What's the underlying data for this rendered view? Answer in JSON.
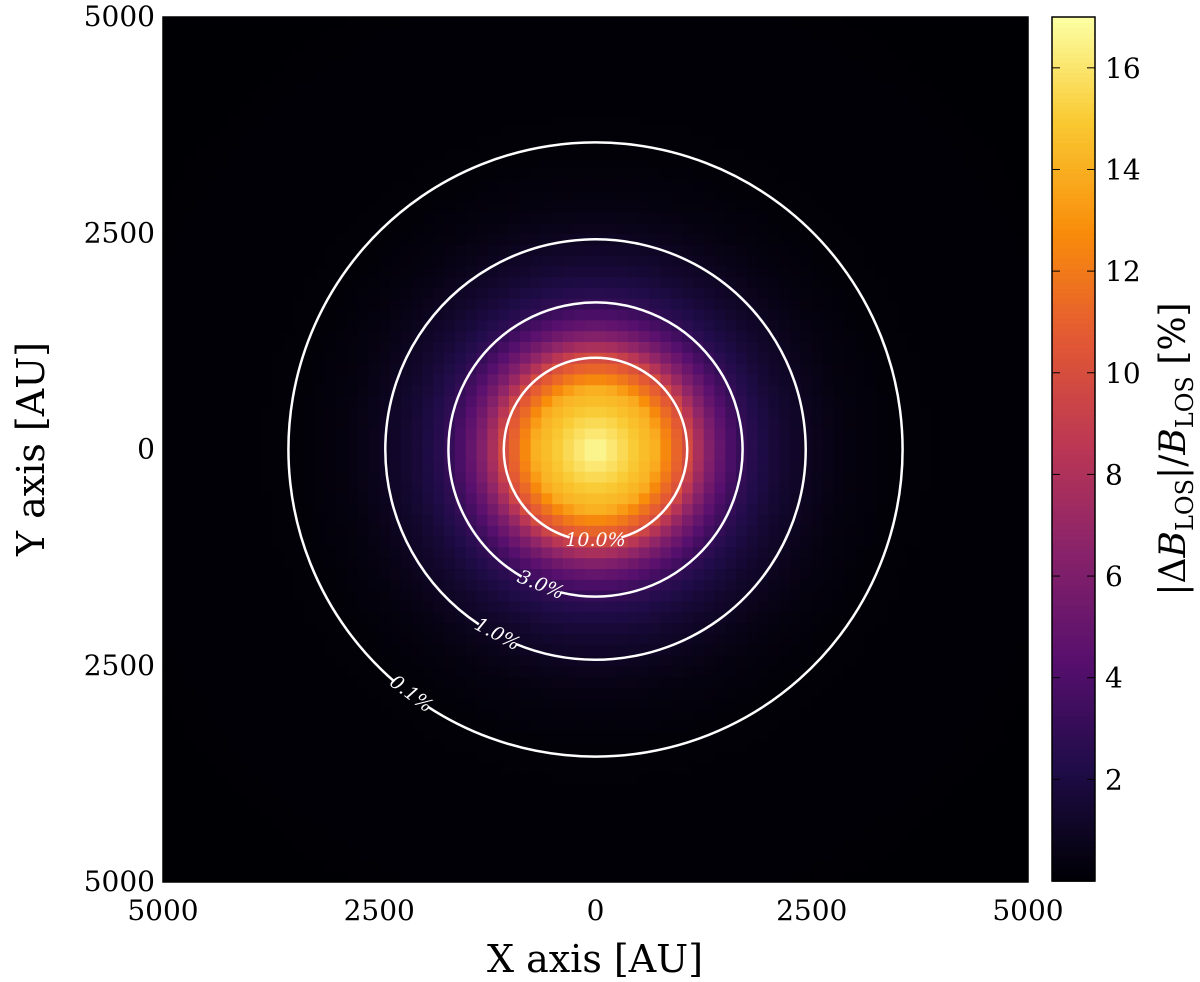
{
  "chart_data": {
    "type": "heatmap",
    "title": "",
    "xlabel": "X  axis [AU]",
    "ylabel": "Y  axis [AU]",
    "xlim": [
      -5000,
      5000
    ],
    "ylim": [
      -5000,
      5000
    ],
    "x_ticks": [
      {
        "value": -5000,
        "label": "5000"
      },
      {
        "value": -2500,
        "label": "2500"
      },
      {
        "value": 0,
        "label": "0"
      },
      {
        "value": 2500,
        "label": "2500"
      },
      {
        "value": 5000,
        "label": "5000"
      }
    ],
    "y_ticks": [
      {
        "value": -5000,
        "label": "5000"
      },
      {
        "value": -2500,
        "label": "2500"
      },
      {
        "value": 0,
        "label": "0"
      },
      {
        "value": 2500,
        "label": "2500"
      },
      {
        "value": 5000,
        "label": "5000"
      }
    ],
    "colormap": "inferno",
    "colorbar": {
      "label": "|ΔB_LOS|/B_LOS [%]",
      "label_parts": [
        "|Δ",
        "B",
        "LOS",
        "|/",
        "B",
        "LOS",
        " [%]"
      ],
      "range": [
        0,
        17
      ],
      "ticks": [
        2,
        4,
        6,
        8,
        10,
        12,
        14,
        16
      ],
      "tick_labels": [
        "2",
        "4",
        "6",
        "8",
        "10",
        "12",
        "14",
        "16"
      ]
    },
    "field": {
      "description": "radially symmetric peak centered at origin",
      "center": [
        0,
        0
      ],
      "peak_value": 17,
      "pixel_count": 80
    },
    "contours": [
      {
        "level": 0.1,
        "label": "0.1%",
        "radius": 3550
      },
      {
        "level": 1.0,
        "label": "1.0%",
        "radius": 2430
      },
      {
        "level": 3.0,
        "label": "3.0%",
        "radius": 1700
      },
      {
        "level": 10.0,
        "label": "10.0%",
        "radius": 1060
      }
    ],
    "contour_color": "#ffffff",
    "grid": false,
    "legend": "none"
  }
}
